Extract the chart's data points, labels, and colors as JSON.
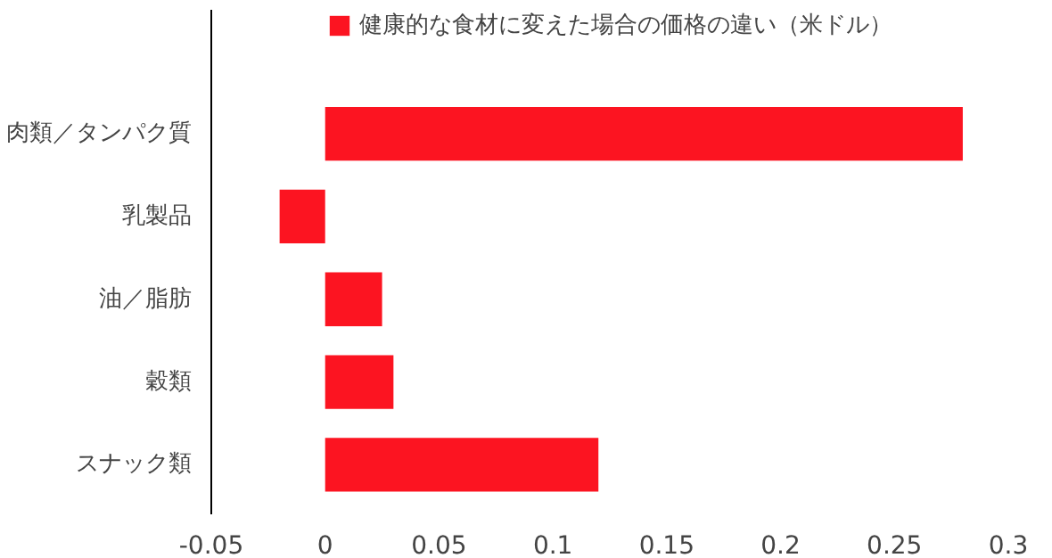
{
  "chart_data": {
    "type": "bar",
    "orientation": "horizontal",
    "categories": [
      "肉類／タンパク質",
      "乳製品",
      "油／脂肪",
      "穀類",
      "スナック類"
    ],
    "series": [
      {
        "name": "健康的な食材に変えた場合の価格の違い（米ドル）",
        "color": "#fc1421",
        "values": [
          0.28,
          -0.02,
          0.025,
          0.03,
          0.12
        ]
      }
    ],
    "xlim": [
      -0.05,
      0.3
    ],
    "xticks": [
      -0.05,
      0,
      0.05,
      0.1,
      0.15,
      0.2,
      0.25,
      0.3
    ],
    "grid": false,
    "legend": "top"
  }
}
